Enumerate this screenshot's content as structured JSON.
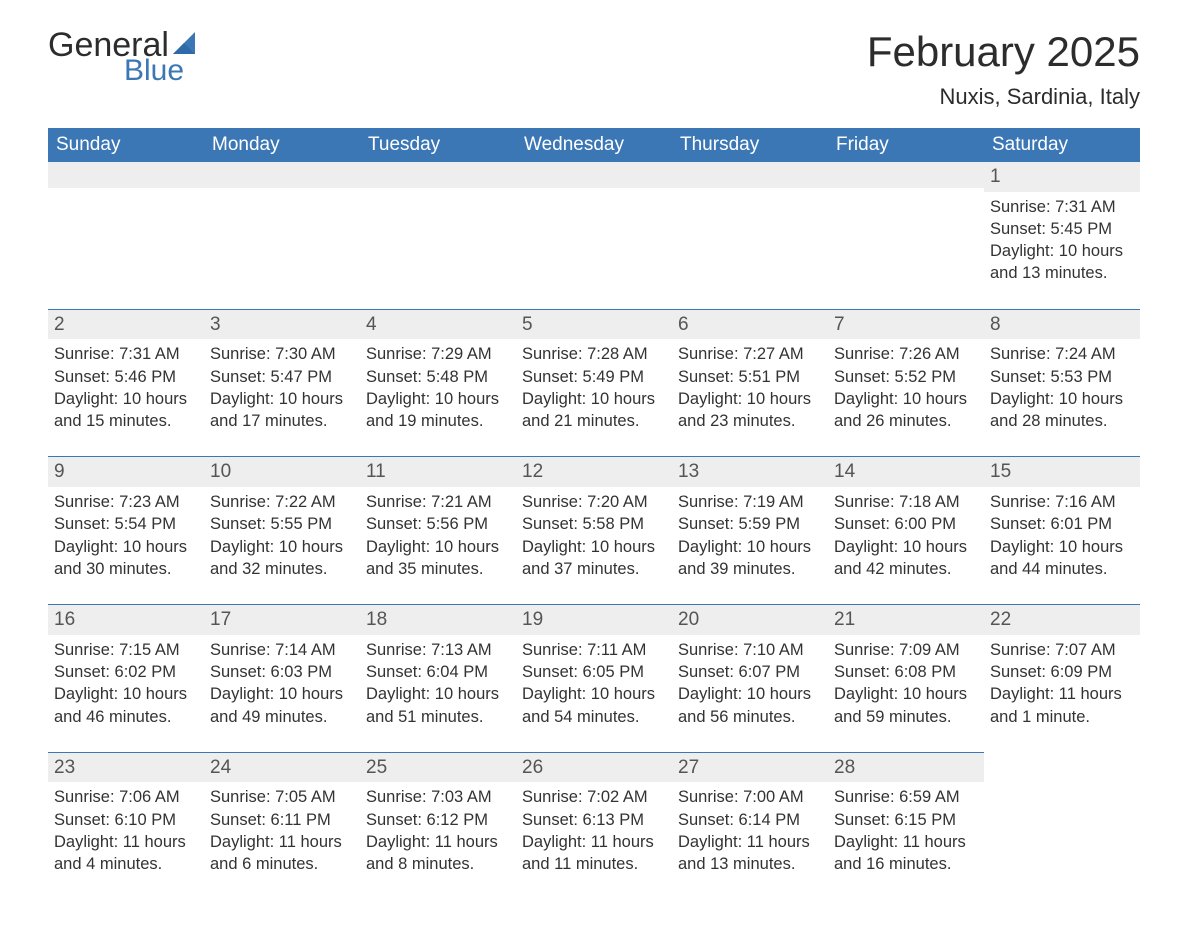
{
  "logo": {
    "text1": "General",
    "text2": "Blue"
  },
  "title": "February 2025",
  "location": "Nuxis, Sardinia, Italy",
  "colors": {
    "header_bg": "#3b77b5",
    "band_bg": "#eeeeee",
    "band_border": "#3b77b5",
    "text": "#333333"
  },
  "weekdays": [
    "Sunday",
    "Monday",
    "Tuesday",
    "Wednesday",
    "Thursday",
    "Friday",
    "Saturday"
  ],
  "weeks": [
    [
      null,
      null,
      null,
      null,
      null,
      null,
      {
        "n": "1",
        "sunrise": "Sunrise: 7:31 AM",
        "sunset": "Sunset: 5:45 PM",
        "daylight": "Daylight: 10 hours and 13 minutes."
      }
    ],
    [
      {
        "n": "2",
        "sunrise": "Sunrise: 7:31 AM",
        "sunset": "Sunset: 5:46 PM",
        "daylight": "Daylight: 10 hours and 15 minutes."
      },
      {
        "n": "3",
        "sunrise": "Sunrise: 7:30 AM",
        "sunset": "Sunset: 5:47 PM",
        "daylight": "Daylight: 10 hours and 17 minutes."
      },
      {
        "n": "4",
        "sunrise": "Sunrise: 7:29 AM",
        "sunset": "Sunset: 5:48 PM",
        "daylight": "Daylight: 10 hours and 19 minutes."
      },
      {
        "n": "5",
        "sunrise": "Sunrise: 7:28 AM",
        "sunset": "Sunset: 5:49 PM",
        "daylight": "Daylight: 10 hours and 21 minutes."
      },
      {
        "n": "6",
        "sunrise": "Sunrise: 7:27 AM",
        "sunset": "Sunset: 5:51 PM",
        "daylight": "Daylight: 10 hours and 23 minutes."
      },
      {
        "n": "7",
        "sunrise": "Sunrise: 7:26 AM",
        "sunset": "Sunset: 5:52 PM",
        "daylight": "Daylight: 10 hours and 26 minutes."
      },
      {
        "n": "8",
        "sunrise": "Sunrise: 7:24 AM",
        "sunset": "Sunset: 5:53 PM",
        "daylight": "Daylight: 10 hours and 28 minutes."
      }
    ],
    [
      {
        "n": "9",
        "sunrise": "Sunrise: 7:23 AM",
        "sunset": "Sunset: 5:54 PM",
        "daylight": "Daylight: 10 hours and 30 minutes."
      },
      {
        "n": "10",
        "sunrise": "Sunrise: 7:22 AM",
        "sunset": "Sunset: 5:55 PM",
        "daylight": "Daylight: 10 hours and 32 minutes."
      },
      {
        "n": "11",
        "sunrise": "Sunrise: 7:21 AM",
        "sunset": "Sunset: 5:56 PM",
        "daylight": "Daylight: 10 hours and 35 minutes."
      },
      {
        "n": "12",
        "sunrise": "Sunrise: 7:20 AM",
        "sunset": "Sunset: 5:58 PM",
        "daylight": "Daylight: 10 hours and 37 minutes."
      },
      {
        "n": "13",
        "sunrise": "Sunrise: 7:19 AM",
        "sunset": "Sunset: 5:59 PM",
        "daylight": "Daylight: 10 hours and 39 minutes."
      },
      {
        "n": "14",
        "sunrise": "Sunrise: 7:18 AM",
        "sunset": "Sunset: 6:00 PM",
        "daylight": "Daylight: 10 hours and 42 minutes."
      },
      {
        "n": "15",
        "sunrise": "Sunrise: 7:16 AM",
        "sunset": "Sunset: 6:01 PM",
        "daylight": "Daylight: 10 hours and 44 minutes."
      }
    ],
    [
      {
        "n": "16",
        "sunrise": "Sunrise: 7:15 AM",
        "sunset": "Sunset: 6:02 PM",
        "daylight": "Daylight: 10 hours and 46 minutes."
      },
      {
        "n": "17",
        "sunrise": "Sunrise: 7:14 AM",
        "sunset": "Sunset: 6:03 PM",
        "daylight": "Daylight: 10 hours and 49 minutes."
      },
      {
        "n": "18",
        "sunrise": "Sunrise: 7:13 AM",
        "sunset": "Sunset: 6:04 PM",
        "daylight": "Daylight: 10 hours and 51 minutes."
      },
      {
        "n": "19",
        "sunrise": "Sunrise: 7:11 AM",
        "sunset": "Sunset: 6:05 PM",
        "daylight": "Daylight: 10 hours and 54 minutes."
      },
      {
        "n": "20",
        "sunrise": "Sunrise: 7:10 AM",
        "sunset": "Sunset: 6:07 PM",
        "daylight": "Daylight: 10 hours and 56 minutes."
      },
      {
        "n": "21",
        "sunrise": "Sunrise: 7:09 AM",
        "sunset": "Sunset: 6:08 PM",
        "daylight": "Daylight: 10 hours and 59 minutes."
      },
      {
        "n": "22",
        "sunrise": "Sunrise: 7:07 AM",
        "sunset": "Sunset: 6:09 PM",
        "daylight": "Daylight: 11 hours and 1 minute."
      }
    ],
    [
      {
        "n": "23",
        "sunrise": "Sunrise: 7:06 AM",
        "sunset": "Sunset: 6:10 PM",
        "daylight": "Daylight: 11 hours and 4 minutes."
      },
      {
        "n": "24",
        "sunrise": "Sunrise: 7:05 AM",
        "sunset": "Sunset: 6:11 PM",
        "daylight": "Daylight: 11 hours and 6 minutes."
      },
      {
        "n": "25",
        "sunrise": "Sunrise: 7:03 AM",
        "sunset": "Sunset: 6:12 PM",
        "daylight": "Daylight: 11 hours and 8 minutes."
      },
      {
        "n": "26",
        "sunrise": "Sunrise: 7:02 AM",
        "sunset": "Sunset: 6:13 PM",
        "daylight": "Daylight: 11 hours and 11 minutes."
      },
      {
        "n": "27",
        "sunrise": "Sunrise: 7:00 AM",
        "sunset": "Sunset: 6:14 PM",
        "daylight": "Daylight: 11 hours and 13 minutes."
      },
      {
        "n": "28",
        "sunrise": "Sunrise: 6:59 AM",
        "sunset": "Sunset: 6:15 PM",
        "daylight": "Daylight: 11 hours and 16 minutes."
      },
      null
    ]
  ]
}
